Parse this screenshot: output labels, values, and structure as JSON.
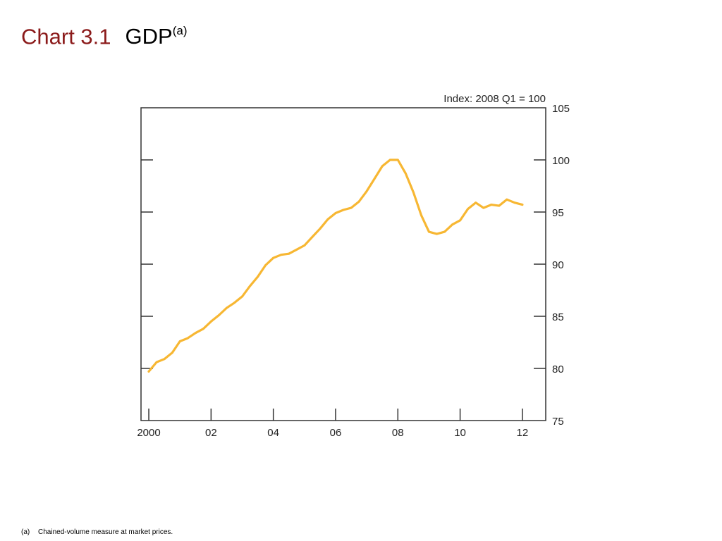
{
  "title": {
    "chart_number": "Chart 3.1",
    "chart_name": "GDP",
    "footnote_ref": "(a)"
  },
  "footnote": {
    "marker": "(a)",
    "text": "Chained-volume measure at market prices."
  },
  "colors": {
    "chart_number": "#8b1a1a",
    "series_line": "#f7b733",
    "axis": "#333333"
  },
  "chart_data": {
    "type": "line",
    "unit_label": "Index:  2008 Q1 = 100",
    "ylim": [
      75,
      105
    ],
    "yticks": [
      75,
      80,
      85,
      90,
      95,
      100,
      105
    ],
    "y_axis_side": "right",
    "xlim": [
      1999.75,
      2012.75
    ],
    "xticks": [
      {
        "value": 2000,
        "label": "2000"
      },
      {
        "value": 2002,
        "label": "02"
      },
      {
        "value": 2004,
        "label": "04"
      },
      {
        "value": 2006,
        "label": "06"
      },
      {
        "value": 2008,
        "label": "08"
      },
      {
        "value": 2010,
        "label": "10"
      },
      {
        "value": 2012,
        "label": "12"
      }
    ],
    "grid": false,
    "series": [
      {
        "x": [
          2000.0,
          2000.25,
          2000.5,
          2000.75,
          2001.0,
          2001.25,
          2001.5,
          2001.75,
          2002.0,
          2002.25,
          2002.5,
          2002.75,
          2003.0,
          2003.25,
          2003.5,
          2003.75,
          2004.0,
          2004.25,
          2004.5,
          2004.75,
          2005.0,
          2005.25,
          2005.5,
          2005.75,
          2006.0,
          2006.25,
          2006.5,
          2006.75,
          2007.0,
          2007.25,
          2007.5,
          2007.75,
          2008.0,
          2008.25,
          2008.5,
          2008.75,
          2009.0,
          2009.25,
          2009.5,
          2009.75,
          2010.0,
          2010.25,
          2010.5,
          2010.75,
          2011.0,
          2011.25,
          2011.5,
          2011.75,
          2012.0
        ],
        "y": [
          79.7,
          80.6,
          80.9,
          81.5,
          82.6,
          82.9,
          83.4,
          83.8,
          84.5,
          85.1,
          85.8,
          86.3,
          86.9,
          87.9,
          88.8,
          89.9,
          90.6,
          90.9,
          91.0,
          91.4,
          91.8,
          92.6,
          93.4,
          94.3,
          94.9,
          95.2,
          95.4,
          96.0,
          97.0,
          98.2,
          99.4,
          100.0,
          100.0,
          98.7,
          96.9,
          94.7,
          93.1,
          92.9,
          93.1,
          93.8,
          94.2,
          95.3,
          95.9,
          95.4,
          95.7,
          95.6,
          96.2,
          95.9,
          95.7
        ]
      }
    ]
  }
}
